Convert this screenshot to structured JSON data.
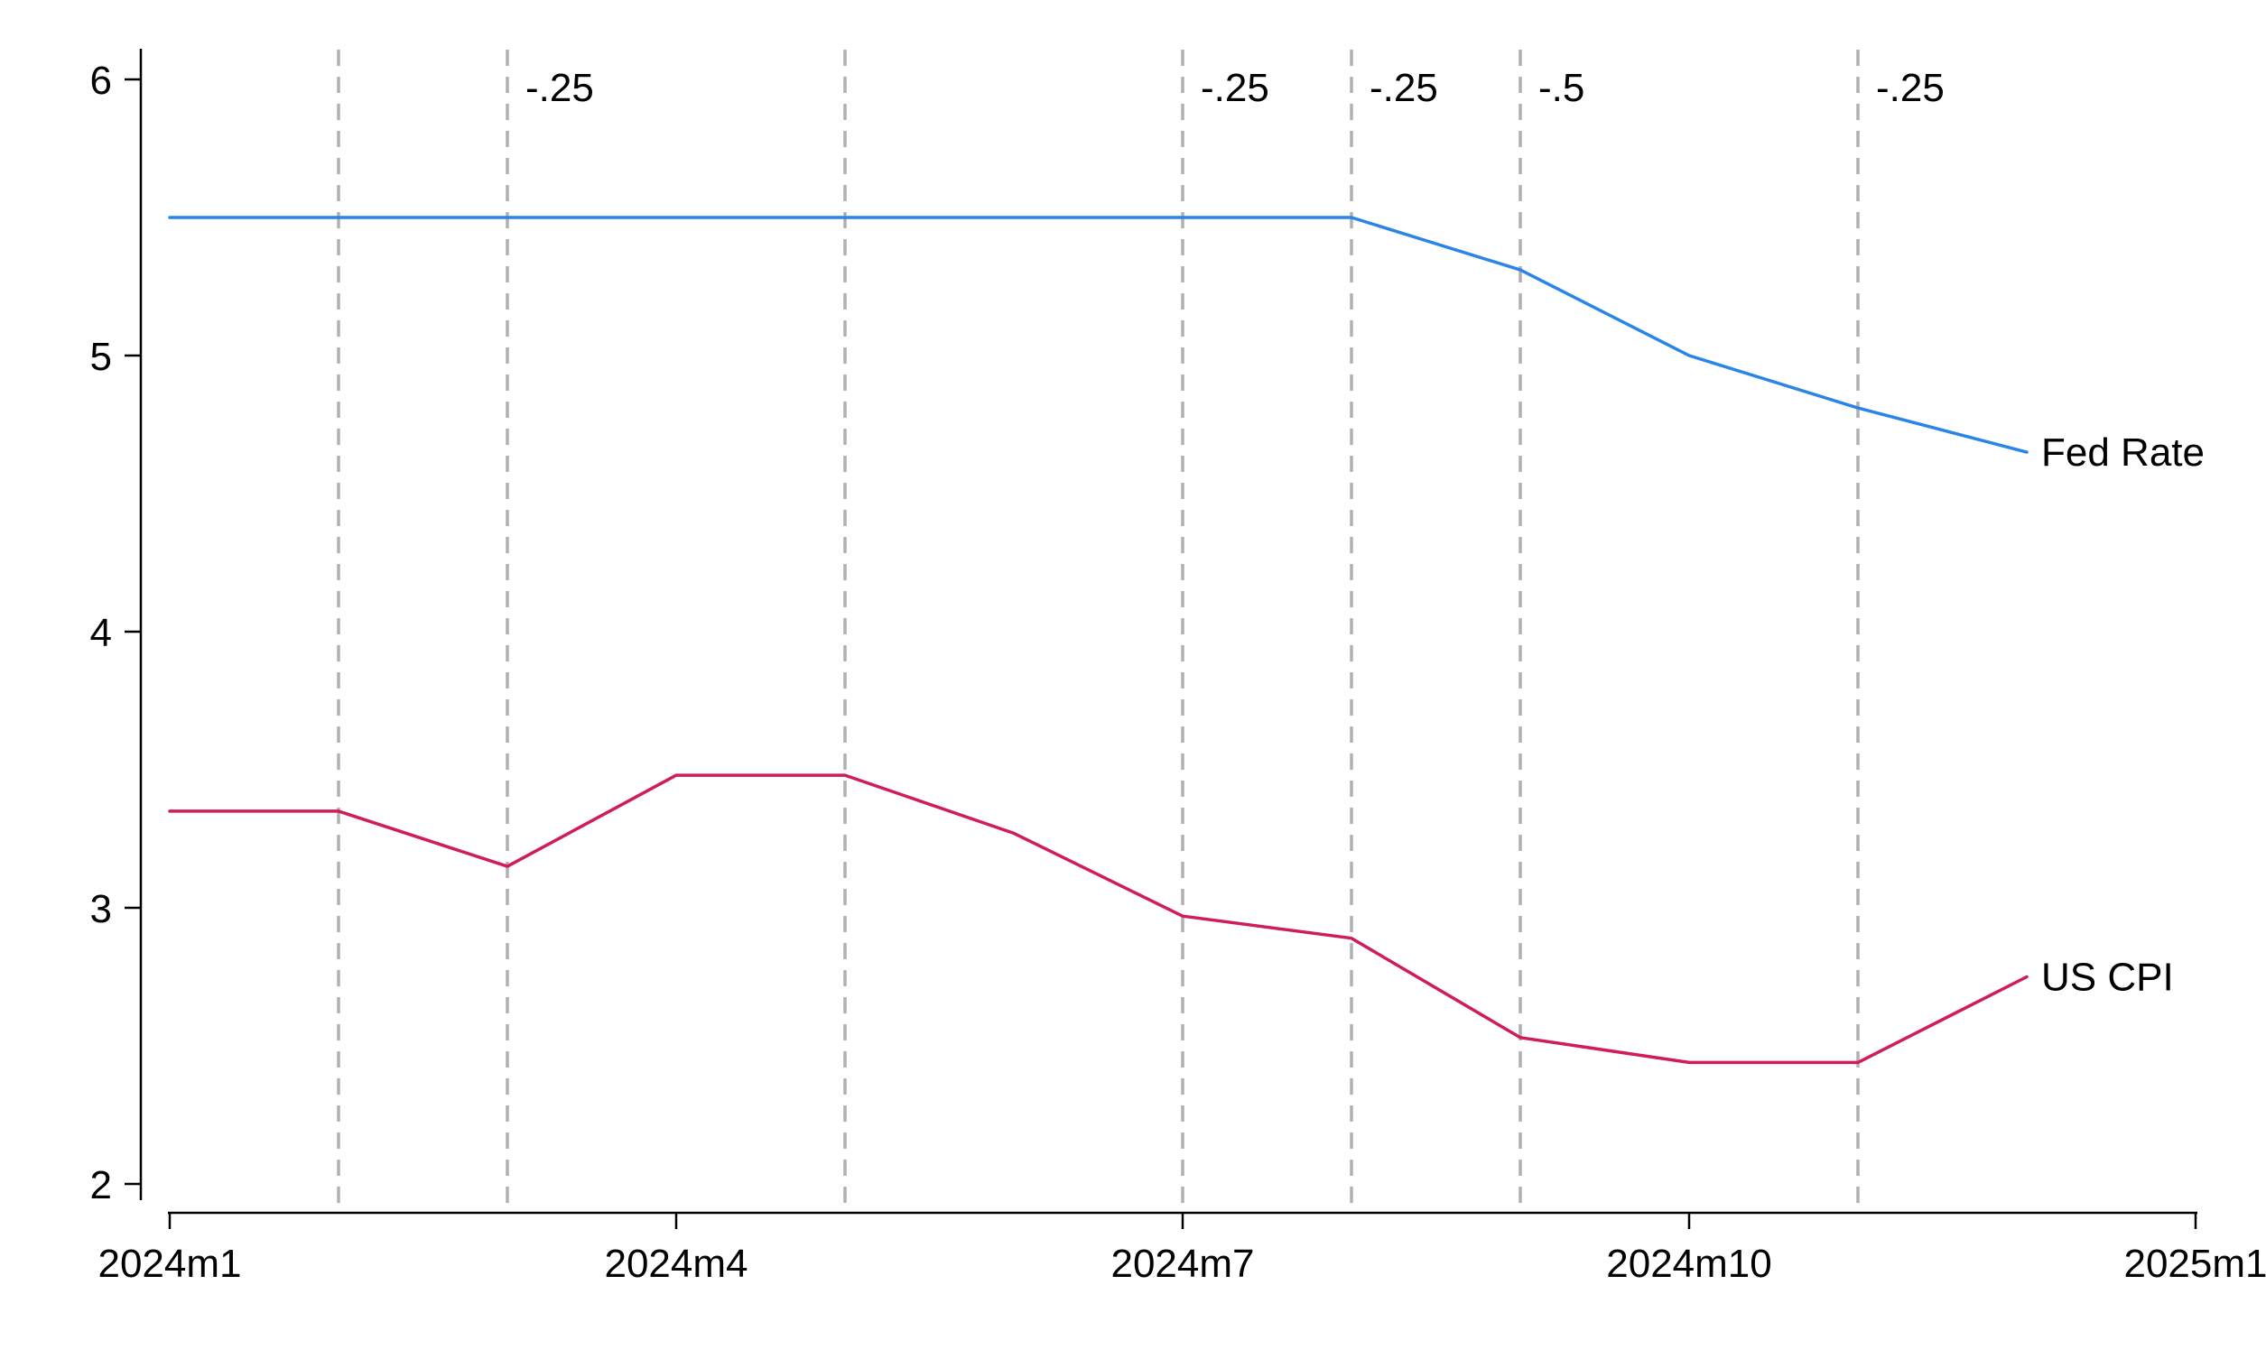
{
  "chart_data": {
    "type": "line",
    "title": "",
    "xlabel": "",
    "ylabel": "",
    "x": [
      "2024m1",
      "2024m2",
      "2024m3",
      "2024m4",
      "2024m5",
      "2024m6",
      "2024m7",
      "2024m8",
      "2024m9",
      "2024m10",
      "2024m11",
      "2024m12"
    ],
    "x_axis": {
      "range": [
        "2024m1",
        "2025m1"
      ],
      "ticks": [
        "2024m1",
        "2024m4",
        "2024m7",
        "2024m10",
        "2025m1"
      ]
    },
    "y_axis": {
      "range": [
        2,
        6
      ],
      "ticks": [
        2,
        3,
        4,
        5,
        6
      ]
    },
    "grid": false,
    "legend": "none",
    "series": [
      {
        "name": "Fed Rate",
        "color": "#2a85e8",
        "values": [
          5.5,
          5.5,
          5.5,
          5.5,
          5.5,
          5.5,
          5.5,
          5.5,
          5.31,
          5.0,
          4.81,
          4.65
        ]
      },
      {
        "name": "US CPI",
        "color": "#d01c5b",
        "values": [
          3.35,
          3.35,
          3.15,
          3.48,
          3.48,
          3.27,
          2.97,
          2.89,
          2.53,
          2.44,
          2.44,
          2.75
        ]
      }
    ],
    "vertical_lines": [
      {
        "x": "2024m2",
        "label": ""
      },
      {
        "x": "2024m3",
        "label": "-.25"
      },
      {
        "x": "2024m5",
        "label": ""
      },
      {
        "x": "2024m7",
        "label": "-.25"
      },
      {
        "x": "2024m8",
        "label": "-.25"
      },
      {
        "x": "2024m9",
        "label": "-.5"
      },
      {
        "x": "2024m11",
        "label": "-.25"
      }
    ]
  }
}
